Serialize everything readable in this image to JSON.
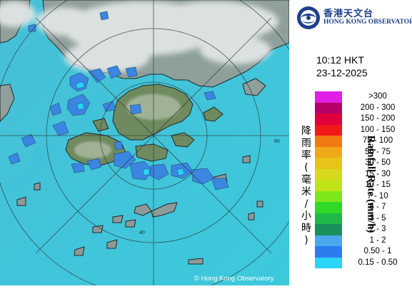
{
  "header": {
    "org_name_cn": "香港天文台",
    "org_name_en": "HONG KONG OBSERVATORY"
  },
  "timestamp": {
    "time": "10:12 HKT",
    "date": "23-12-2025"
  },
  "legend": {
    "title_cn": "降雨率(毫米/小時)",
    "title_en": "Rainfall Rate (mm/h)",
    "items": [
      {
        "label": ">300",
        "color": "#e020e8"
      },
      {
        "label": "200 - 300",
        "color": "#b8006a"
      },
      {
        "label": "150 - 200",
        "color": "#e0003c"
      },
      {
        "label": "100 - 150",
        "color": "#f01818"
      },
      {
        "label": "75 - 100",
        "color": "#f07a10"
      },
      {
        "label": "50 - 75",
        "color": "#f0a818"
      },
      {
        "label": "30 - 50",
        "color": "#e8c418"
      },
      {
        "label": "15 - 30",
        "color": "#d8d81c"
      },
      {
        "label": "10 - 15",
        "color": "#c0e418"
      },
      {
        "label": "7 - 10",
        "color": "#7ce81c"
      },
      {
        "label": "5 - 7",
        "color": "#30d828"
      },
      {
        "label": "3 - 5",
        "color": "#20b848"
      },
      {
        "label": "2 - 3",
        "color": "#18905c"
      },
      {
        "label": "1 - 2",
        "color": "#4aa8ec"
      },
      {
        "label": "0.50 - 1",
        "color": "#2c7cf0"
      },
      {
        "label": "0.15 - 0.50",
        "color": "#28d4f8"
      }
    ]
  },
  "map": {
    "range_ring_labels": [
      "40",
      "60"
    ],
    "copyright": "© Hong Kong Observatory",
    "colors": {
      "sea": "#3fc6d8",
      "land": "#93a3a0",
      "cloud": "#e2e6e6",
      "rain_light": "#3a86e0"
    }
  }
}
